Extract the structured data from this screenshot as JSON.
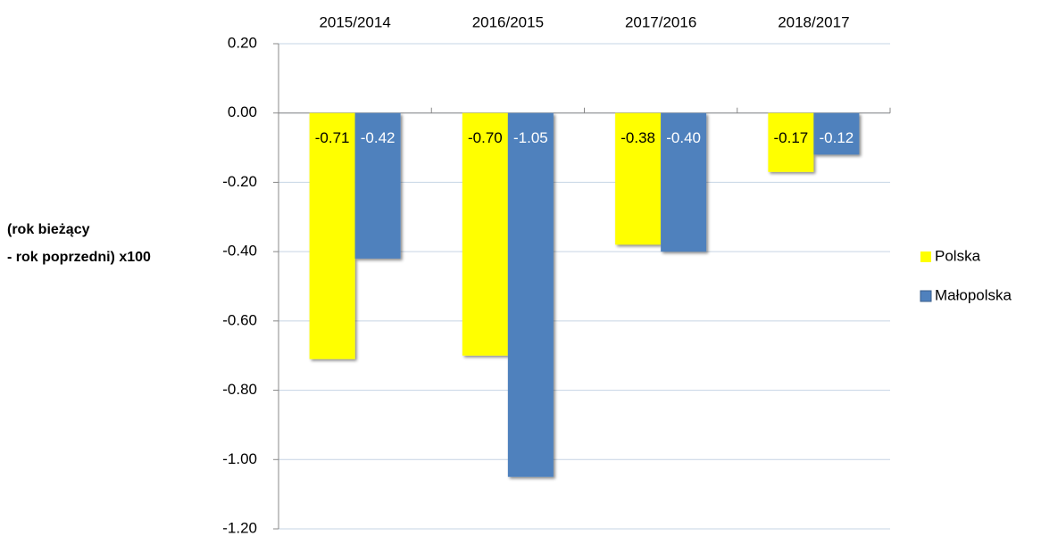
{
  "chart_data": {
    "type": "bar",
    "y_label": [
      "(rok bieżący",
      "- rok poprzedni) x100"
    ],
    "categories": [
      "2015/2014",
      "2016/2015",
      "2017/2016",
      "2018/2017"
    ],
    "series": [
      {
        "name": "Polska",
        "color": "#ffff00",
        "label_color": "#000000",
        "values": [
          -0.71,
          -0.7,
          -0.38,
          -0.17
        ],
        "value_labels": [
          "-0.71",
          "-0.70",
          "-0.38",
          "-0.17"
        ]
      },
      {
        "name": "Małopolska",
        "color": "#4f81bd",
        "label_color": "#ffffff",
        "values": [
          -0.42,
          -1.05,
          -0.4,
          -0.12
        ],
        "value_labels": [
          "-0.42",
          "-1.05",
          "-0.40",
          "-0.12"
        ]
      }
    ],
    "ylim": [
      -1.2,
      0.2
    ],
    "yticks": [
      {
        "value": 0.2,
        "label": "0.20"
      },
      {
        "value": 0,
        "label": "0.00"
      },
      {
        "value": -0.2,
        "label": "-0.20"
      },
      {
        "value": -0.4,
        "label": "-0.40"
      },
      {
        "value": -0.6,
        "label": "-0.60"
      },
      {
        "value": -0.8,
        "label": "-0.80"
      },
      {
        "value": -1,
        "label": "-1.00"
      },
      {
        "value": -1.2,
        "label": "-1.20"
      }
    ],
    "grid": true,
    "legend": "right"
  }
}
